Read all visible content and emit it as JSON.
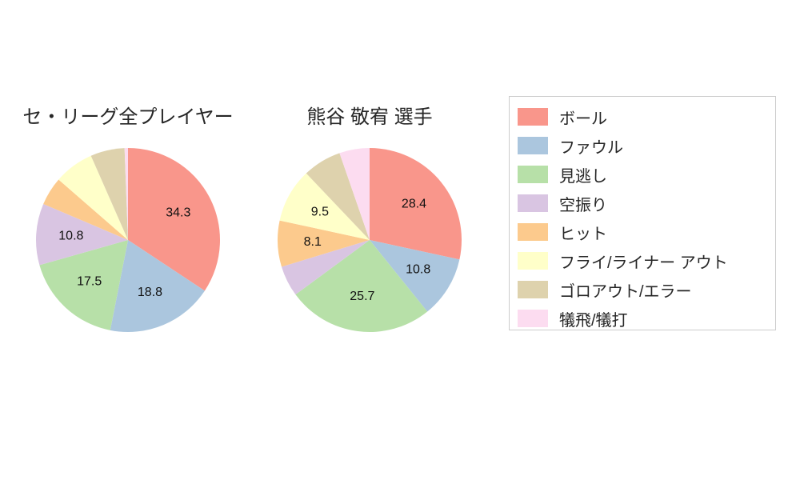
{
  "chart_data": [
    {
      "type": "pie",
      "title": "セ・リーグ全プレイヤー",
      "labels": [
        "ボール",
        "ファウル",
        "見逃し",
        "空振り",
        "ヒット",
        "フライ/ライナー アウト",
        "ゴロアウト/エラー",
        "犠飛/犠打"
      ],
      "values": [
        34.3,
        18.8,
        17.5,
        10.8,
        5.0,
        7.0,
        6.0,
        0.6
      ],
      "shown_value_labels": [
        "34.3",
        "18.8",
        "17.5",
        "10.8",
        "",
        "",
        "",
        ""
      ],
      "start_angle_deg": 0,
      "direction": "clockwise-from-top",
      "label_radius_frac": 0.62,
      "legend_position": "right"
    },
    {
      "type": "pie",
      "title": "熊谷 敬宥  選手",
      "labels": [
        "ボール",
        "ファウル",
        "見逃し",
        "空振り",
        "ヒット",
        "フライ/ライナー アウト",
        "ゴロアウト/エラー",
        "犠飛/犠打"
      ],
      "values": [
        28.4,
        10.8,
        25.7,
        5.4,
        8.1,
        9.5,
        6.8,
        5.3
      ],
      "shown_value_labels": [
        "28.4",
        "10.8",
        "25.7",
        "",
        "8.1",
        "9.5",
        "",
        ""
      ],
      "start_angle_deg": 0,
      "direction": "clockwise-from-top",
      "label_radius_frac": 0.62,
      "legend_position": "right"
    }
  ],
  "legend": {
    "items": [
      {
        "label": "ボール",
        "color": "#f9968b"
      },
      {
        "label": "ファウル",
        "color": "#abc6de"
      },
      {
        "label": "見逃し",
        "color": "#b7e0a8"
      },
      {
        "label": "空振り",
        "color": "#d9c5e2"
      },
      {
        "label": "ヒット",
        "color": "#fcca8d"
      },
      {
        "label": "フライ/ライナー アウト",
        "color": "#ffffc9"
      },
      {
        "label": "ゴロアウト/エラー",
        "color": "#ded2ad"
      },
      {
        "label": "犠飛/犠打",
        "color": "#fcdcf0"
      }
    ]
  },
  "page": {
    "background_color": "#ffffff",
    "text_color": "#262626"
  }
}
